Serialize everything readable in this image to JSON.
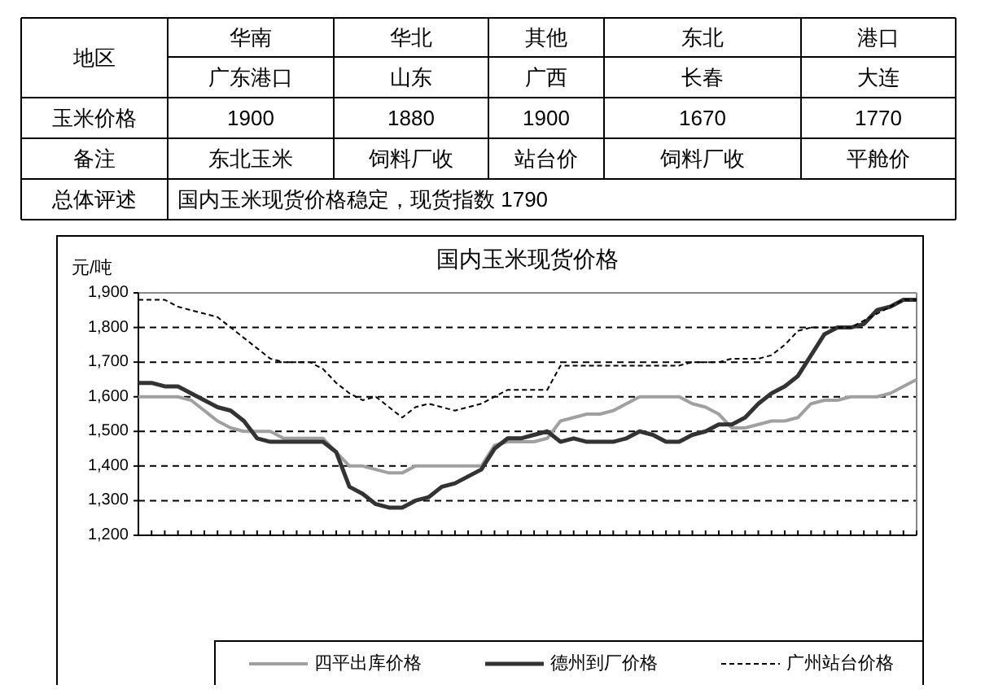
{
  "chart_data": [
    {
      "type": "other",
      "annotations": [
        "地区",
        "华南",
        "华北",
        "其他",
        "东北",
        "港口",
        "广东港口",
        "山东",
        "广西",
        "长春",
        "大连",
        "玉米价格",
        "1900",
        "1880",
        "1900",
        "1670",
        "1770",
        "备注",
        "东北玉米",
        "饲料厂收",
        "站台价",
        "饲料厂收",
        "平舱价",
        "总体评述",
        "国内玉米现货价格稳定，现货指数 1790"
      ]
    },
    {
      "type": "line",
      "title": "国内玉米现货价格",
      "ylabel": "元/吨",
      "categories": [
        null,
        null,
        null,
        null,
        null,
        null,
        null,
        null,
        null,
        null,
        null,
        null,
        null,
        null,
        null,
        null,
        null,
        null,
        null,
        null,
        null,
        null,
        null,
        null,
        null,
        null,
        null,
        null,
        null,
        null,
        null,
        null,
        null,
        null,
        null,
        null,
        null,
        null,
        null,
        null,
        null,
        null,
        null,
        null,
        null,
        null,
        null,
        null,
        null,
        null,
        null,
        null,
        null,
        null,
        null,
        null,
        null,
        null,
        null,
        null
      ],
      "ylim": [
        1200,
        1900
      ],
      "yticks": [
        {
          "value": 1200,
          "label": "1,200"
        },
        {
          "value": 1300,
          "label": "1,300"
        },
        {
          "value": 1400,
          "label": "1,400"
        },
        {
          "value": 1500,
          "label": "1,500"
        },
        {
          "value": 1600,
          "label": "1,600"
        },
        {
          "value": 1700,
          "label": "1,700"
        },
        {
          "value": 1800,
          "label": "1,800"
        },
        {
          "value": 1900,
          "label": "1,900"
        }
      ],
      "grid": "y",
      "legend": "bottom",
      "series": [
        {
          "name": "四平出库价格",
          "color": "#a0a0a0",
          "line_style": "solid",
          "values": [
            1600,
            1600,
            1600,
            1600,
            1590,
            1560,
            1530,
            1510,
            1500,
            1500,
            1500,
            1480,
            1480,
            1480,
            1480,
            1440,
            1400,
            1400,
            1390,
            1380,
            1380,
            1400,
            1400,
            1400,
            1400,
            1400,
            1400,
            1460,
            1470,
            1470,
            1470,
            1480,
            1530,
            1540,
            1550,
            1550,
            1560,
            1580,
            1600,
            1600,
            1600,
            1600,
            1580,
            1570,
            1550,
            1510,
            1510,
            1520,
            1530,
            1530,
            1540,
            1580,
            1590,
            1590,
            1600,
            1600,
            1600,
            1610,
            1630,
            1650
          ]
        },
        {
          "name": "德州到厂价格",
          "color": "#333333",
          "line_style": "solid",
          "values": [
            1640,
            1640,
            1630,
            1630,
            1610,
            1590,
            1570,
            1560,
            1530,
            1480,
            1470,
            1470,
            1470,
            1470,
            1470,
            1440,
            1340,
            1320,
            1290,
            1280,
            1280,
            1300,
            1310,
            1340,
            1350,
            1370,
            1390,
            1450,
            1480,
            1480,
            1490,
            1500,
            1470,
            1480,
            1470,
            1470,
            1470,
            1480,
            1500,
            1490,
            1470,
            1470,
            1490,
            1500,
            1520,
            1520,
            1540,
            1580,
            1610,
            1630,
            1660,
            1720,
            1780,
            1800,
            1800,
            1810,
            1850,
            1860,
            1880,
            1880
          ]
        },
        {
          "name": "广州站台价格",
          "color": "#000000",
          "line_style": "dashed",
          "values": [
            1880,
            1880,
            1880,
            1860,
            1850,
            1840,
            1830,
            1800,
            1770,
            1740,
            1710,
            1700,
            1700,
            1700,
            1680,
            1640,
            1610,
            1590,
            1600,
            1570,
            1540,
            1570,
            1580,
            1570,
            1560,
            1570,
            1580,
            1600,
            1620,
            1620,
            1620,
            1620,
            1690,
            1690,
            1690,
            1690,
            1690,
            1690,
            1690,
            1690,
            1690,
            1690,
            1700,
            1700,
            1700,
            1710,
            1710,
            1710,
            1720,
            1750,
            1790,
            1800,
            1800,
            1800,
            1800,
            1820,
            1840,
            1860,
            1880,
            1880
          ]
        }
      ]
    }
  ]
}
